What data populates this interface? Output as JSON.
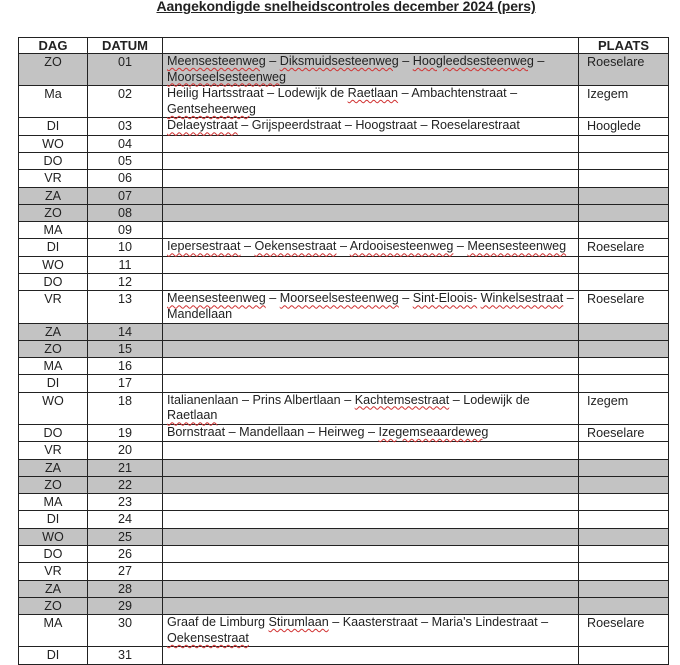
{
  "title": "Aangekondigde snelheidscontroles december 2024 (pers)",
  "headers": {
    "dag": "DAG",
    "datum": "DATUM",
    "straten": "",
    "plaats": "PLAATS"
  },
  "colors": {
    "weekend_shading": "#c3c3c3",
    "spellcheck_underline": "#d03030"
  },
  "spellcheck_flagged": [
    "Meensesteenweg",
    "Diksmuidsesteenweg",
    "Hoogleedsesteenweg",
    "Moorseelsesteenweg",
    "Raetlaan",
    "Gentseheerweg",
    "Delaeystraat",
    "Iepersestraat",
    "Oekensestraat",
    "Ardooisesteenweg",
    "Sint-Eloois-",
    "Winkelsestraat",
    "Kachtemsestraat",
    "Izegemseaardeweg",
    "Stirumlaan"
  ],
  "rows": [
    {
      "dag": "ZO",
      "datum": "01",
      "straten": "Meensesteenweg – Diksmuidsesteenweg – Hoogleedsesteenweg – Moorseelsesteenweg",
      "plaats": "Roeselare",
      "shaded": true
    },
    {
      "dag": "Ma",
      "datum": "02",
      "straten": "Heilig Hartsstraat – Lodewijk de Raetlaan – Ambachtenstraat – Gentseheerweg",
      "plaats": "Izegem",
      "shaded": false
    },
    {
      "dag": "DI",
      "datum": "03",
      "straten": "Delaeystraat – Grijspeerdstraat – Hoogstraat – Roeselarestraat",
      "plaats": "Hooglede",
      "shaded": false
    },
    {
      "dag": "WO",
      "datum": "04",
      "straten": "",
      "plaats": "",
      "shaded": false
    },
    {
      "dag": "DO",
      "datum": "05",
      "straten": "",
      "plaats": "",
      "shaded": false
    },
    {
      "dag": "VR",
      "datum": "06",
      "straten": "",
      "plaats": "",
      "shaded": false
    },
    {
      "dag": "ZA",
      "datum": "07",
      "straten": "",
      "plaats": "",
      "shaded": true
    },
    {
      "dag": "ZO",
      "datum": "08",
      "straten": "",
      "plaats": "",
      "shaded": true
    },
    {
      "dag": "MA",
      "datum": "09",
      "straten": "",
      "plaats": "",
      "shaded": false
    },
    {
      "dag": "DI",
      "datum": "10",
      "straten": "Iepersestraat – Oekensestraat – Ardooisesteenweg – Meensesteenweg",
      "plaats": "Roeselare",
      "shaded": false
    },
    {
      "dag": "WO",
      "datum": "11",
      "straten": "",
      "plaats": "",
      "shaded": false
    },
    {
      "dag": "DO",
      "datum": "12",
      "straten": "",
      "plaats": "",
      "shaded": false
    },
    {
      "dag": "VR",
      "datum": "13",
      "straten": "Meensesteenweg – Moorseelsesteenweg – Sint-Eloois- Winkelsestraat – Mandellaan",
      "plaats": "Roeselare",
      "shaded": false
    },
    {
      "dag": "ZA",
      "datum": "14",
      "straten": "",
      "plaats": "",
      "shaded": true
    },
    {
      "dag": "ZO",
      "datum": "15",
      "straten": "",
      "plaats": "",
      "shaded": true
    },
    {
      "dag": "MA",
      "datum": "16",
      "straten": "",
      "plaats": "",
      "shaded": false
    },
    {
      "dag": "DI",
      "datum": "17",
      "straten": "",
      "plaats": "",
      "shaded": false
    },
    {
      "dag": "WO",
      "datum": "18",
      "straten": "Italianenlaan – Prins Albertlaan – Kachtemsestraat – Lodewijk de Raetlaan",
      "plaats": "Izegem",
      "shaded": false
    },
    {
      "dag": "DO",
      "datum": "19",
      "straten": "Bornstraat – Mandellaan – Heirweg – Izegemseaardeweg",
      "plaats": "Roeselare",
      "shaded": false
    },
    {
      "dag": "VR",
      "datum": "20",
      "straten": "",
      "plaats": "",
      "shaded": false
    },
    {
      "dag": "ZA",
      "datum": "21",
      "straten": "",
      "plaats": "",
      "shaded": true
    },
    {
      "dag": "ZO",
      "datum": "22",
      "straten": "",
      "plaats": "",
      "shaded": true
    },
    {
      "dag": "MA",
      "datum": "23",
      "straten": "",
      "plaats": "",
      "shaded": false
    },
    {
      "dag": "DI",
      "datum": "24",
      "straten": "",
      "plaats": "",
      "shaded": false
    },
    {
      "dag": "WO",
      "datum": "25",
      "straten": "",
      "plaats": "",
      "shaded": true
    },
    {
      "dag": "DO",
      "datum": "26",
      "straten": "",
      "plaats": "",
      "shaded": false
    },
    {
      "dag": "VR",
      "datum": "27",
      "straten": "",
      "plaats": "",
      "shaded": false
    },
    {
      "dag": "ZA",
      "datum": "28",
      "straten": "",
      "plaats": "",
      "shaded": true
    },
    {
      "dag": "ZO",
      "datum": "29",
      "straten": "",
      "plaats": "",
      "shaded": true
    },
    {
      "dag": "MA",
      "datum": "30",
      "straten": "Graaf de Limburg Stirumlaan – Kaasterstraat – Maria's Lindestraat – Oekensestraat",
      "plaats": "Roeselare",
      "shaded": false
    },
    {
      "dag": "DI",
      "datum": "31",
      "straten": "",
      "plaats": "",
      "shaded": false
    }
  ]
}
